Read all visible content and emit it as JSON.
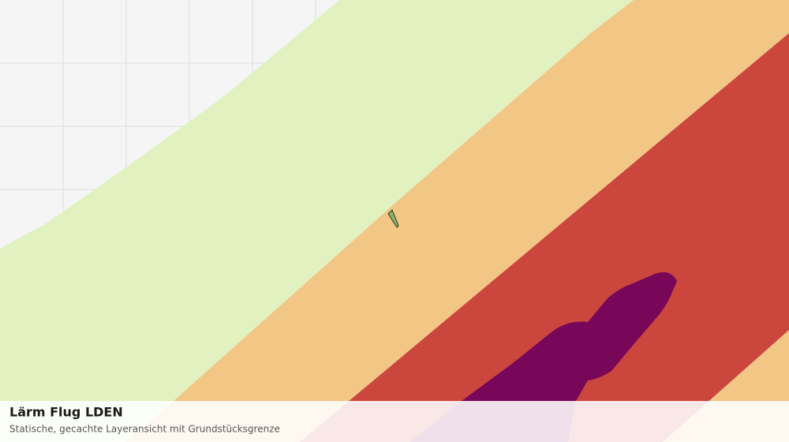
{
  "title": "Lärm Flug LDEN",
  "subtitle": "Statische, gecachte Layeransicht mit Grundstücksgrenze"
}
